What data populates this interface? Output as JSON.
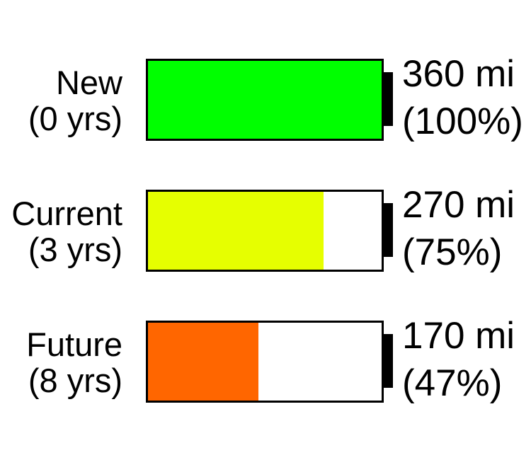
{
  "chart_data": {
    "type": "bar",
    "categories": [
      "New",
      "Current",
      "Future"
    ],
    "category_ages": [
      "(0 yrs)",
      "(3 yrs)",
      "(8 yrs)"
    ],
    "values": [
      360,
      270,
      170
    ],
    "unit": "mi",
    "value_labels": [
      "360 mi",
      "270 mi",
      "170 mi"
    ],
    "percent_labels": [
      "(100%)",
      "(75%)",
      "(47%)"
    ],
    "percent_values": [
      100,
      75,
      47
    ],
    "colors": [
      "#00ff00",
      "#e6ff00",
      "#ff6600"
    ],
    "xlim": [
      0,
      360
    ],
    "grid": false,
    "legend": "none"
  }
}
